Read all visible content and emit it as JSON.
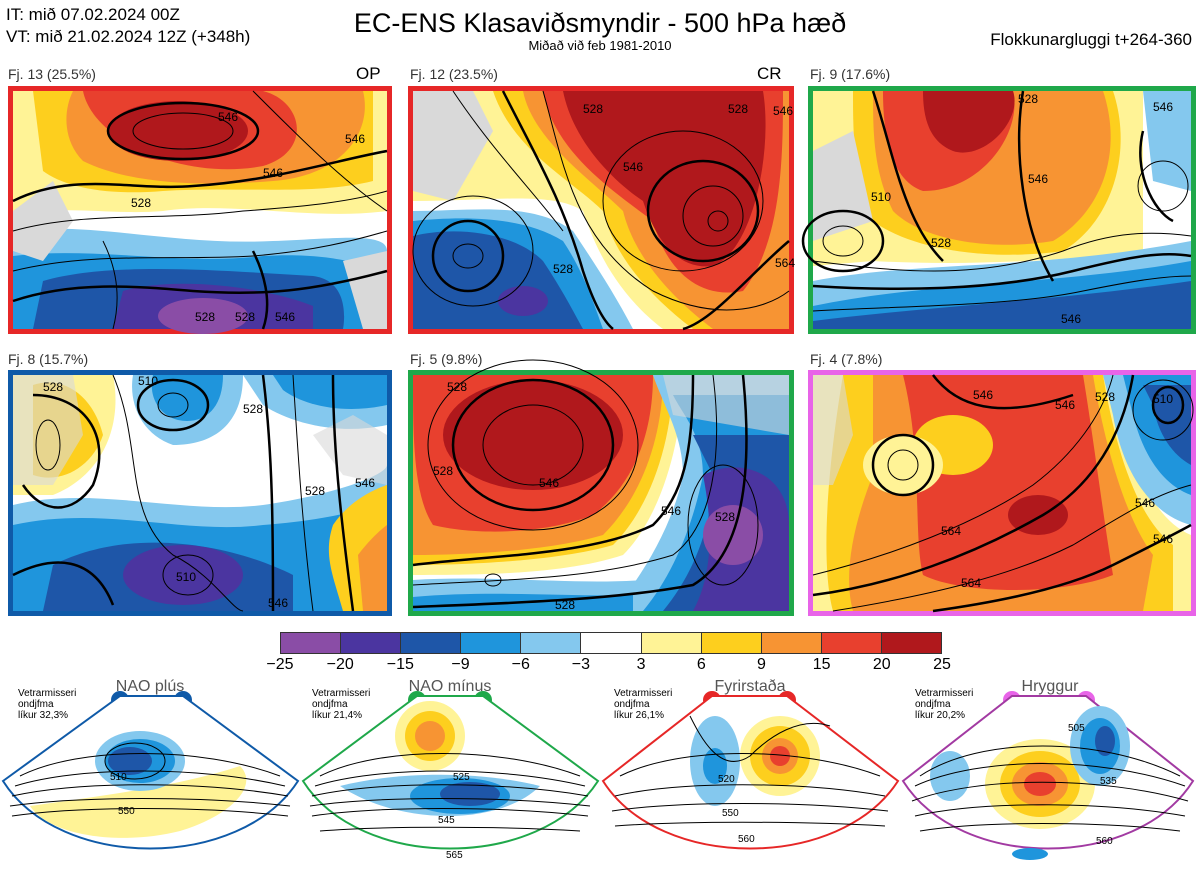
{
  "header": {
    "it_line": "IT: mið 07.02.2024 00Z",
    "vt_line": "VT: mið 21.02.2024 12Z  (+348h)",
    "title": "EC-ENS Klasaviðsmyndir - 500 hPa hæð",
    "subtitle": "Miðað við feb 1981-2010",
    "window": "Flokkunargluggi t+264-360"
  },
  "clusters": [
    {
      "label": "Fj. 13 (25.5%)",
      "tag": "OP",
      "border_color": "#e62727",
      "contours": [
        "546",
        "546",
        "528",
        "546",
        "528",
        "528",
        "546"
      ]
    },
    {
      "label": "Fj. 12 (23.5%)",
      "tag": "CR",
      "border_color": "#e62727",
      "contours": [
        "528",
        "528",
        "546",
        "528",
        "564",
        "546"
      ]
    },
    {
      "label": "Fj. 9 (17.6%)",
      "tag": "",
      "border_color": "#1fa84a",
      "contours": [
        "528",
        "546",
        "510",
        "528",
        "546",
        "546"
      ]
    },
    {
      "label": "Fj. 8 (15.7%)",
      "tag": "",
      "border_color": "#0f5aa8",
      "contours": [
        "528",
        "510",
        "528",
        "510",
        "546",
        "528",
        "546"
      ]
    },
    {
      "label": "Fj. 5 (9.8%)",
      "tag": "",
      "border_color": "#1fa84a",
      "contours": [
        "528",
        "546",
        "528",
        "546",
        "528",
        "528"
      ]
    },
    {
      "label": "Fj. 4 (7.8%)",
      "tag": "",
      "border_color": "#e864e8",
      "contours": [
        "546",
        "528",
        "546",
        "510",
        "546",
        "564",
        "546",
        "564"
      ]
    }
  ],
  "colorbar": {
    "colors": [
      "#8a4da6",
      "#4b35a0",
      "#1e56a8",
      "#1f95dc",
      "#84c8ee",
      "#ffffff",
      "#fff396",
      "#fdcf1e",
      "#f79433",
      "#e8402e",
      "#b0181c"
    ],
    "ticks": [
      "−25",
      "−20",
      "−15",
      "−9",
      "−6",
      "−3",
      "3",
      "6",
      "9",
      "15",
      "20",
      "25"
    ]
  },
  "regimes": [
    {
      "title": "NAO plús",
      "note": "Vetrarmisseri\nondjfma\nlíkur 32,3%",
      "color": "#0f5aa8",
      "contours": [
        "510",
        "550"
      ]
    },
    {
      "title": "NAO mínus",
      "note": "Vetrarmisseri\nondjfma\nlíkur 21,4%",
      "color": "#1fa84a",
      "contours": [
        "525",
        "545",
        "565"
      ]
    },
    {
      "title": "Fyrirstaða",
      "note": "Vetrarmisseri\nondjfma\nlíkur 26,1%",
      "color": "#e62727",
      "contours": [
        "520",
        "550",
        "560"
      ]
    },
    {
      "title": "Hryggur",
      "note": "Vetrarmisseri\nondjfma\nlíkur 20,2%",
      "color": "#e864e8",
      "contours": [
        "505",
        "535",
        "560"
      ]
    }
  ]
}
